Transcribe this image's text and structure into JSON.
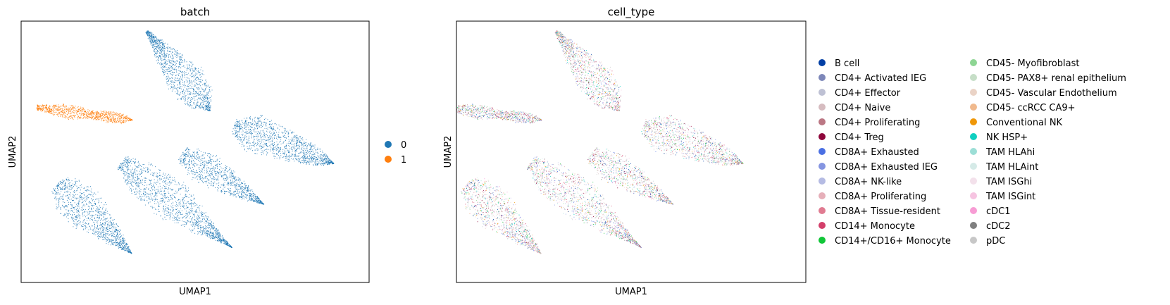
{
  "chart_data": [
    {
      "type": "scatter",
      "title": "batch",
      "xlabel": "UMAP1",
      "ylabel": "UMAP2",
      "grid": false,
      "axis_ticks": false,
      "legend_placement": "right",
      "legend": [
        {
          "label": "0",
          "color": "#1f77b4"
        },
        {
          "label": "1",
          "color": "#ff7f0e"
        }
      ],
      "clusters": [
        {
          "name": "upper-left",
          "batch": "1"
        },
        {
          "name": "top-center",
          "batch": "0"
        },
        {
          "name": "right",
          "batch": "0"
        },
        {
          "name": "middle-right",
          "batch": "0"
        },
        {
          "name": "center",
          "batch": "0"
        },
        {
          "name": "lower-left",
          "batch": "0"
        }
      ]
    },
    {
      "type": "scatter",
      "title": "cell_type",
      "xlabel": "UMAP1",
      "ylabel": "UMAP2",
      "grid": false,
      "axis_ticks": false,
      "legend_placement": "right",
      "legend_columns": 2,
      "legend": [
        {
          "label": "B cell",
          "color": "#023fa5"
        },
        {
          "label": "CD4+ Activated IEG",
          "color": "#7d87b9"
        },
        {
          "label": "CD4+ Effector",
          "color": "#bec1d4"
        },
        {
          "label": "CD4+ Naive",
          "color": "#d6bcc0"
        },
        {
          "label": "CD4+ Proliferating",
          "color": "#bb7784"
        },
        {
          "label": "CD4+ Treg",
          "color": "#8e063b"
        },
        {
          "label": "CD8A+ Exhausted",
          "color": "#4a6fe3"
        },
        {
          "label": "CD8A+ Exhausted IEG",
          "color": "#8595e1"
        },
        {
          "label": "CD8A+ NK-like",
          "color": "#b5bbe3"
        },
        {
          "label": "CD8A+ Proliferating",
          "color": "#e6afb9"
        },
        {
          "label": "CD8A+ Tissue-resident",
          "color": "#e07b91"
        },
        {
          "label": "CD14+ Monocyte",
          "color": "#d33f6a"
        },
        {
          "label": "CD14+/CD16+ Monocyte",
          "color": "#11c638"
        },
        {
          "label": "CD45- Myofibroblast",
          "color": "#8dd593"
        },
        {
          "label": "CD45- PAX8+ renal epithelium",
          "color": "#c6dec7"
        },
        {
          "label": "CD45- Vascular Endothelium",
          "color": "#ead3c6"
        },
        {
          "label": "CD45- ccRCC CA9+",
          "color": "#f0b98d"
        },
        {
          "label": "Conventional NK",
          "color": "#ef9708"
        },
        {
          "label": "NK HSP+",
          "color": "#0fcfc0"
        },
        {
          "label": "TAM HLAhi",
          "color": "#9cded6"
        },
        {
          "label": "TAM HLAint",
          "color": "#d5eae7"
        },
        {
          "label": "TAM ISGhi",
          "color": "#f3e1eb"
        },
        {
          "label": "TAM ISGint",
          "color": "#f6c4e1"
        },
        {
          "label": "cDC1",
          "color": "#f79cd4"
        },
        {
          "label": "cDC2",
          "color": "#7f7f7f"
        },
        {
          "label": "pDC",
          "color": "#c7c7c7"
        }
      ]
    }
  ]
}
